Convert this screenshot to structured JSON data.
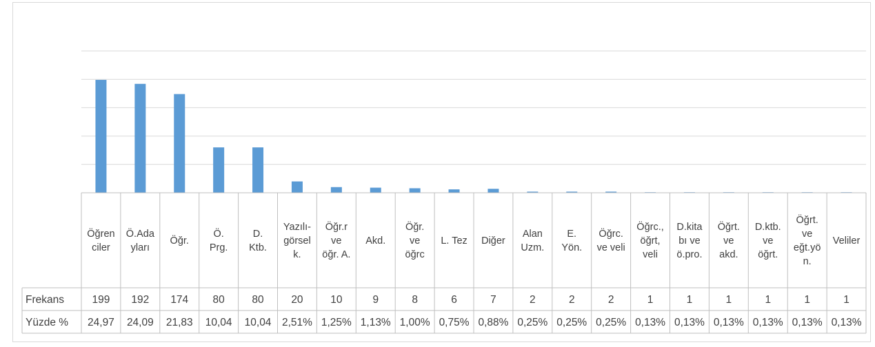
{
  "chart_data": {
    "type": "bar",
    "title": "",
    "xlabel": "",
    "ylabel": "",
    "ylim": [
      0,
      250
    ],
    "grid": true,
    "y_ticks_shown": false,
    "bar_color": "#5b9bd5",
    "categories": [
      [
        "Öğren",
        "ciler"
      ],
      [
        "Ö.Ada",
        "yları"
      ],
      [
        "Öğr."
      ],
      [
        "Ö.",
        "Prg."
      ],
      [
        "D.",
        "Ktb."
      ],
      [
        "Yazılı-",
        "görsel",
        "k."
      ],
      [
        "Öğr.r",
        "ve",
        "öğr. A."
      ],
      [
        "Akd."
      ],
      [
        "Öğr.",
        "ve",
        "öğrc"
      ],
      [
        "L. Tez"
      ],
      [
        "Diğer"
      ],
      [
        "Alan",
        "Uzm."
      ],
      [
        "E.",
        "Yön."
      ],
      [
        "Öğrc.",
        "ve veli"
      ],
      [
        "Öğrc.,",
        "öğrt,",
        "veli"
      ],
      [
        "D.kita",
        "bı ve",
        "ö.pro."
      ],
      [
        "Öğrt.",
        "ve",
        "akd."
      ],
      [
        "D.ktb.",
        "ve",
        "öğrt."
      ],
      [
        "Öğrt.",
        "ve",
        "eğt.yö",
        "n."
      ],
      [
        "Veliler"
      ]
    ],
    "series": [
      {
        "name": "Frekans",
        "values": [
          199,
          192,
          174,
          80,
          80,
          20,
          10,
          9,
          8,
          6,
          7,
          2,
          2,
          2,
          1,
          1,
          1,
          1,
          1,
          1
        ]
      }
    ],
    "table_rows": [
      {
        "label": "Frekans",
        "cells": [
          "199",
          "192",
          "174",
          "80",
          "80",
          "20",
          "10",
          "9",
          "8",
          "6",
          "7",
          "2",
          "2",
          "2",
          "1",
          "1",
          "1",
          "1",
          "1",
          "1"
        ]
      },
      {
        "label": "Yüzde %",
        "cells": [
          "24,97",
          "24,09",
          "21,83",
          "10,04",
          "10,04",
          "2,51%",
          "1,25%",
          "1,13%",
          "1,00%",
          "0,75%",
          "0,88%",
          "0,25%",
          "0,25%",
          "0,25%",
          "0,13%",
          "0,13%",
          "0,13%",
          "0,13%",
          "0,13%",
          "0,13%"
        ]
      }
    ]
  }
}
